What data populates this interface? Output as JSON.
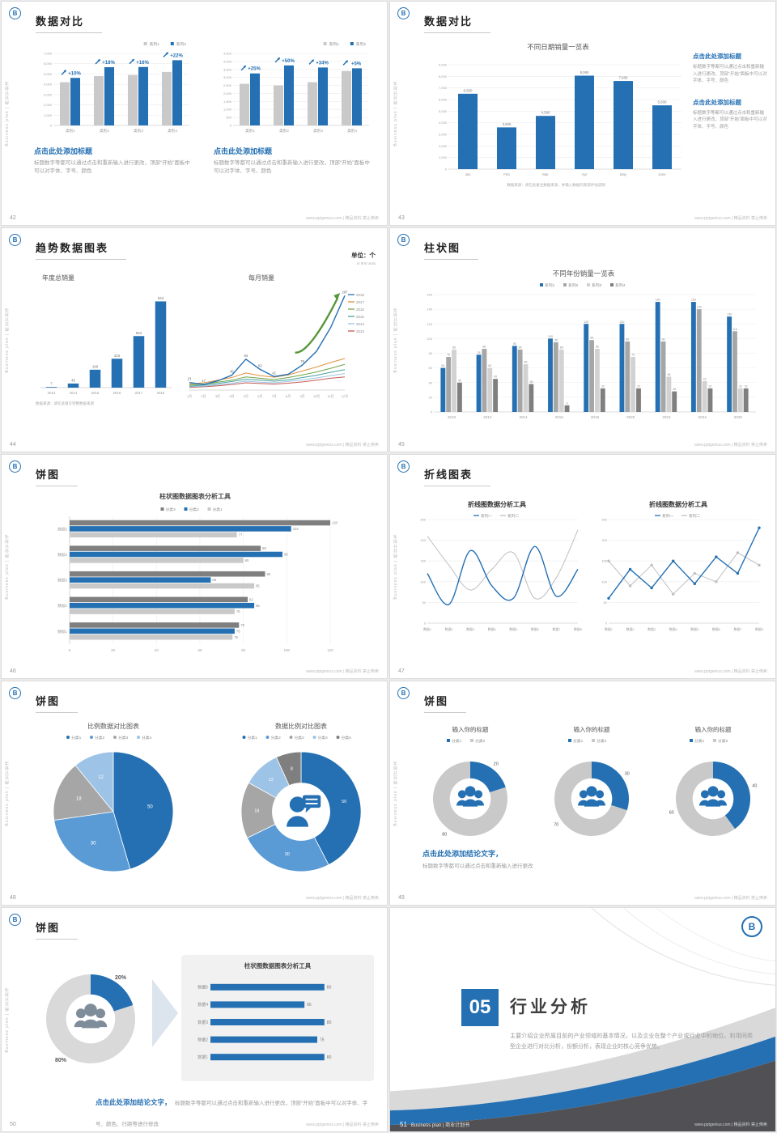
{
  "page": {
    "footer": "www.pptgenius.com | 精品资料 禁止倒卖",
    "sidebar_text": "Business plan | 商业计划书",
    "logo_glyph": "B",
    "accent_color": "#2470b3"
  },
  "slides": [
    {
      "number": "42",
      "title": "数据对比",
      "left_block": {
        "heading": "点击此处添加标题",
        "body": "标题数字等都可以通过点击和重新输入进行更改，顶部“开始”面板中可以对字体、字号、颜色"
      },
      "right_block": {
        "heading": "点击此处添加标题",
        "body": "标题数字等都可以通过点击和重新输入进行更改，顶部“开始”面板中可以对字体、字号、颜色"
      },
      "charts": [
        {
          "type": "grouped_bar",
          "legend": [
            "系列1",
            "系列2"
          ],
          "categories": [
            "类别1",
            "类别2",
            "类别3",
            "类别4"
          ],
          "series": [
            {
              "name": "系列1",
              "color": "#c9c9c9",
              "values": [
                4200,
                4800,
                4900,
                5200
              ]
            },
            {
              "name": "系列2",
              "color": "#2470b3",
              "values": [
                4620,
                5660,
                5680,
                6340
              ]
            }
          ],
          "growth_labels": [
            "+10%",
            "+18%",
            "+16%",
            "+22%"
          ],
          "ylim": [
            0,
            7000
          ],
          "yticks": [
            "0",
            "1,000",
            "2,000",
            "3,000",
            "4,000",
            "5,000",
            "6,000",
            "7,000"
          ]
        },
        {
          "type": "grouped_bar",
          "legend": [
            "系列1",
            "系列2"
          ],
          "categories": [
            "类别1",
            "类别2",
            "类别3",
            "类别4"
          ],
          "series": [
            {
              "name": "系列1",
              "color": "#c9c9c9",
              "values": [
                2600,
                2500,
                2700,
                3400
              ]
            },
            {
              "name": "系列2",
              "color": "#2470b3",
              "values": [
                3250,
                3750,
                3620,
                3570
              ]
            }
          ],
          "growth_labels": [
            "+25%",
            "+50%",
            "+34%",
            "+5%"
          ],
          "ylim": [
            0,
            4500
          ],
          "yticks": [
            "0",
            "500",
            "1,000",
            "1,500",
            "2,000",
            "2,500",
            "3,000",
            "3,500",
            "4,000",
            "4,500"
          ]
        }
      ]
    },
    {
      "number": "43",
      "title": "数据对比",
      "chart_title": "不同日期销量一览表",
      "blocks": [
        {
          "heading": "点击此处添加标题",
          "body": "标题数字等都可以通过点击和重新输入进行更改，顶部“开始”面板中可以对字体、字号、颜色"
        },
        {
          "heading": "点击此处添加标题",
          "body": "标题数字等都可以通过点击和重新输入进行更改，顶部“开始”面板中可以对字体、字号、颜色"
        }
      ],
      "source_note": "数据来源：请在此备注数据来源，并输入数据的来源评估说明",
      "charts": [
        {
          "type": "bar",
          "color": "#2470b3",
          "categories": [
            "Jan",
            "Feb",
            "Mar",
            "Apr",
            "May",
            "June"
          ],
          "values": [
            6500,
            3600,
            4590,
            8060,
            7600,
            5500
          ],
          "labels": [
            "6,500",
            "3,600",
            "4,590",
            "8,060",
            "7,600",
            "5,500"
          ],
          "ylim": [
            0,
            9000
          ],
          "yticks": [
            "0",
            "1,000",
            "2,000",
            "3,000",
            "4,000",
            "5,000",
            "6,000",
            "7,000",
            "8,000",
            "9,000"
          ]
        }
      ]
    },
    {
      "number": "44",
      "title": "趋势数据图表",
      "unit_label": "单位：个",
      "unit_sub": "in 900 units",
      "left_chart_title": "年度总销量",
      "right_chart_title": "每月销量",
      "source_note": "数据来源：请在此填写完整数据来源",
      "charts": [
        {
          "type": "bar",
          "color": "#2470b3",
          "categories": [
            "2013",
            "2014",
            "2015",
            "2016",
            "2017",
            "2018"
          ],
          "values": [
            7,
            45,
            196,
            316,
            564,
            943
          ],
          "labels": [
            "7",
            "45",
            "196",
            "316",
            "564",
            "943"
          ],
          "ylim": [
            0,
            1000
          ]
        },
        {
          "type": "line",
          "legend_side": "right",
          "arrow": true,
          "ylim": [
            0,
            300
          ],
          "x": [
            "1月",
            "2月",
            "3月",
            "4月",
            "5月",
            "6月",
            "7月",
            "8月",
            "9月",
            "10月",
            "11月",
            "12月"
          ],
          "series": [
            {
              "name": "2018",
              "color": "#2470b3",
              "values": [
                23,
                17,
                28,
                45,
                94,
                63,
                41,
                48,
                76,
                118,
                190,
                287
              ],
              "labels": [
                "23",
                "17",
                "",
                "45",
                "94",
                "63",
                "41",
                "",
                "76",
                "",
                "",
                "287"
              ]
            },
            {
              "name": "2017",
              "color": "#e2903f",
              "values": [
                18,
                22,
                30,
                38,
                52,
                44,
                39,
                46,
                58,
                70,
                84,
                96
              ]
            },
            {
              "name": "2016",
              "color": "#6fa544",
              "values": [
                15,
                18,
                24,
                30,
                40,
                36,
                32,
                38,
                46,
                55,
                66,
                78
              ]
            },
            {
              "name": "2015",
              "color": "#4aa0a0",
              "values": [
                12,
                15,
                20,
                26,
                33,
                30,
                27,
                31,
                38,
                45,
                54,
                62
              ]
            },
            {
              "name": "2014",
              "color": "#9cc3e5",
              "values": [
                10,
                12,
                16,
                21,
                27,
                24,
                22,
                26,
                31,
                37,
                44,
                50
              ]
            },
            {
              "name": "2013",
              "color": "#c45a52",
              "values": [
                8,
                10,
                13,
                17,
                22,
                20,
                18,
                21,
                25,
                30,
                36,
                40
              ]
            }
          ]
        }
      ]
    },
    {
      "number": "45",
      "title": "柱状图",
      "chart_title": "不同年份销量一览表",
      "charts": [
        {
          "type": "grouped_bar",
          "legend": [
            "系列1",
            "系列2",
            "系列3",
            "系列4"
          ],
          "legend_pos": "center",
          "show_values": true,
          "categories": [
            "2010",
            "2012",
            "2014",
            "2016",
            "2018",
            "2020",
            "2022",
            "2024",
            "2026"
          ],
          "series": [
            {
              "name": "系列1",
              "color": "#2470b3",
              "values": [
                60,
                78,
                90,
                100,
                120,
                120,
                150,
                150,
                130
              ]
            },
            {
              "name": "系列2",
              "color": "#a6a6a6",
              "values": [
                75,
                86,
                85,
                95,
                98,
                96,
                96,
                140,
                110
              ]
            },
            {
              "name": "系列3",
              "color": "#d2d2d2",
              "values": [
                85,
                60,
                65,
                85,
                86,
                75,
                48,
                42,
                32
              ]
            },
            {
              "name": "系列4",
              "color": "#7f7f7f",
              "values": [
                40,
                45,
                38,
                9,
                32,
                32,
                28,
                32,
                32
              ]
            }
          ],
          "ylim": [
            0,
            160
          ],
          "yticks": [
            "0",
            "20",
            "40",
            "60",
            "80",
            "100",
            "120",
            "140",
            "160"
          ]
        }
      ]
    },
    {
      "number": "46",
      "title": "饼图",
      "chart_title": "柱状图数据图表分析工具",
      "charts": [
        {
          "type": "hbar_grouped",
          "legend": [
            "分类3",
            "分类2",
            "分类1"
          ],
          "categories": [
            "数据5",
            "数据4",
            "数据3",
            "数据2",
            "数据1"
          ],
          "series": [
            {
              "name": "分类3",
              "color": "#7f7f7f",
              "values": [
                120,
                88,
                90,
                82,
                78
              ]
            },
            {
              "name": "分类2",
              "color": "#2470b3",
              "values": [
                102,
                98,
                65,
                85,
                76
              ]
            },
            {
              "name": "分类1",
              "color": "#c9c9c9",
              "values": [
                77,
                80,
                85,
                76,
                75
              ]
            }
          ],
          "xlim": [
            0,
            120
          ],
          "xticks": [
            "0",
            "20",
            "40",
            "60",
            "80",
            "100",
            "120"
          ]
        }
      ]
    },
    {
      "number": "47",
      "title": "折线图表",
      "charts": [
        {
          "type": "line",
          "title": "折线图数据分析工具",
          "smooth": true,
          "legend_top": true,
          "ylim": [
            0,
            250
          ],
          "yticks": [
            "0",
            "50",
            "100",
            "150",
            "200",
            "250"
          ],
          "x": [
            "数据1",
            "数据2",
            "数据3",
            "数据4",
            "数据5",
            "数据6",
            "数据7",
            "数据8"
          ],
          "series": [
            {
              "name": "系列一",
              "color": "#2470b3",
              "values": [
                120,
                45,
                175,
                90,
                60,
                185,
                65,
                130
              ]
            },
            {
              "name": "系列二",
              "color": "#bfbfbf",
              "values": [
                210,
                140,
                80,
                130,
                170,
                60,
                110,
                225
              ]
            }
          ]
        },
        {
          "type": "line",
          "title": "折线图数据分析工具",
          "markers": true,
          "legend_top": true,
          "ylim": [
            0,
            250
          ],
          "yticks": [
            "0",
            "50",
            "100",
            "150",
            "200",
            "250"
          ],
          "x": [
            "数据1",
            "数据2",
            "数据3",
            "数据4",
            "数据5",
            "数据6",
            "数据7",
            "数据8"
          ],
          "series": [
            {
              "name": "系列一",
              "color": "#2470b3",
              "values": [
                60,
                130,
                85,
                150,
                95,
                160,
                120,
                230
              ]
            },
            {
              "name": "系列二",
              "color": "#bfbfbf",
              "values": [
                150,
                90,
                140,
                70,
                120,
                100,
                170,
                140
              ]
            }
          ]
        }
      ]
    },
    {
      "number": "48",
      "title": "饼图",
      "charts": [
        {
          "type": "pie",
          "title": "比例数据对比图表",
          "legend": [
            "分类1",
            "分类2",
            "分类3",
            "分类4"
          ],
          "values": [
            50,
            30,
            18,
            12
          ],
          "labels": [
            "50",
            "30",
            "18",
            "12"
          ],
          "colors": [
            "#2470b3",
            "#5b9bd5",
            "#a6a6a6",
            "#9dc3e6"
          ]
        },
        {
          "type": "donut",
          "title": "数据比例对比图表",
          "legend": [
            "分类1",
            "分类2",
            "分类3",
            "分类4",
            "分类5"
          ],
          "values": [
            50,
            30,
            18,
            12,
            8
          ],
          "labels": [
            "50",
            "30",
            "18",
            "12",
            "8"
          ],
          "colors": [
            "#2470b3",
            "#5b9bd5",
            "#a6a6a6",
            "#9dc3e6",
            "#7f7f7f"
          ],
          "center_icon": "person_bubble"
        }
      ]
    },
    {
      "number": "49",
      "title": "饼图",
      "conclusion_heading": "点击此处添加结论文字，",
      "conclusion_body": "标题数字等都可以通过点击和重新输入进行更改",
      "charts": [
        {
          "type": "donut2",
          "title": "输入你的标题",
          "legend": [
            "分类1",
            "分类2"
          ],
          "value_a": 20,
          "value_b": 80,
          "labels": [
            "20",
            "80"
          ],
          "color_a": "#2470b3",
          "color_b": "#c9c9c9",
          "center_icon": "group"
        },
        {
          "type": "donut2",
          "title": "输入你的标题",
          "legend": [
            "分类1",
            "分类2"
          ],
          "value_a": 30,
          "value_b": 70,
          "labels": [
            "30",
            "70"
          ],
          "color_a": "#2470b3",
          "color_b": "#c9c9c9",
          "center_icon": "group"
        },
        {
          "type": "donut2",
          "title": "输入你的标题",
          "legend": [
            "分类1",
            "分类2"
          ],
          "value_a": 40,
          "value_b": 60,
          "labels": [
            "40",
            "60"
          ],
          "color_a": "#2470b3",
          "color_b": "#c9c9c9",
          "center_icon": "group"
        }
      ]
    },
    {
      "number": "50",
      "title": "饼图",
      "panel_title": "柱状图数据图表分析工具",
      "conclusion_heading": "点击此处添加结论文字，",
      "conclusion_body": "标题数字等都可以通过点击和重新输入进行更改，顶部“开始”面板中可以对字体、字号、颜色、行距等进行修改",
      "charts": [
        {
          "type": "donut2",
          "value_a": 20,
          "value_b": 80,
          "labels": [
            "20%",
            "80%"
          ],
          "color_a": "#2470b3",
          "color_b": "#d9d9d9",
          "center_icon": "group",
          "icon_color": "#7f8c99",
          "label_size": 7,
          "label_bold": true
        },
        {
          "type": "hbar",
          "color": "#2470b3",
          "categories": [
            "数据5",
            "数据4",
            "数据3",
            "数据2",
            "数据1"
          ],
          "values": [
            80,
            66,
            80,
            75,
            80
          ],
          "labels": [
            "80",
            "66",
            "80",
            "75",
            "80"
          ],
          "xlim": [
            0,
            100
          ]
        }
      ]
    },
    {
      "number": "51",
      "section_number": "05",
      "section_title": "行业分析",
      "body": "主要介绍企业所属目前的产业领域的基本情况，以及企业在整个产业或行业中的地位。利用同类型企业进行对比分析，份额分析，表现企业的核心竞争优势。",
      "footer_left": "Business plan | 商业计划书"
    }
  ]
}
